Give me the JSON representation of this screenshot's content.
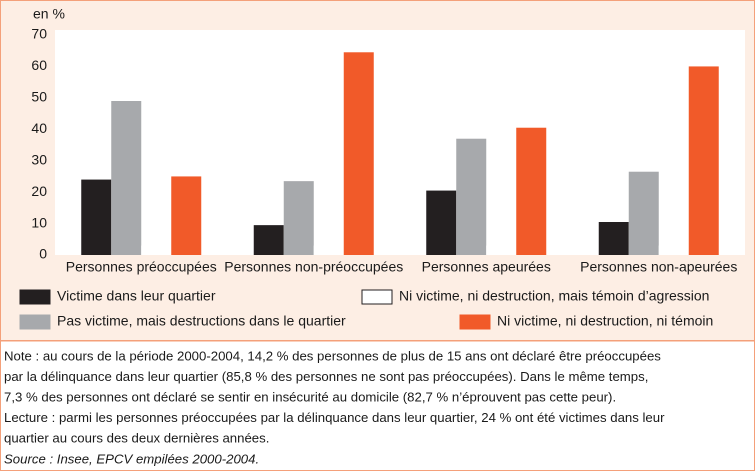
{
  "chart_data": {
    "type": "bar",
    "ylabel": "en %",
    "categories": [
      "Personnes préoccupées",
      "Personnes non-préoccupées",
      "Personnes apeurées",
      "Personnes non-apeurées"
    ],
    "series": [
      {
        "name": "Victime dans leur quartier",
        "color": "#231f20",
        "values": [
          24,
          9.5,
          20.5,
          10.5
        ]
      },
      {
        "name": "Pas victime, mais destructions dans le quartier",
        "color": "#a7a9ac",
        "values": [
          49,
          23.5,
          37,
          26.5
        ]
      },
      {
        "name": "Ni victime, ni destruction, mais témoin d’agression",
        "color": "#ffffff",
        "values": [
          3,
          3,
          3,
          3
        ]
      },
      {
        "name": "Ni victime, ni destruction, ni témoin",
        "color": "#f15a29",
        "values": [
          25,
          64.5,
          40.5,
          60
        ]
      }
    ],
    "ylim": [
      0,
      70
    ],
    "yticks": [
      0,
      10,
      20,
      30,
      40,
      50,
      60,
      70
    ],
    "grid": false,
    "notes": [
      "Note : au cours de la période 2000-2004, 14,2 % des personnes de plus de 15 ans ont déclaré être préoccupées",
      "par la délinquance dans leur quartier (85,8 % des personnes ne sont pas préoccupées). Dans le même temps,",
      "7,3 % des personnes ont déclaré se sentir en insécurité au domicile (82,7 % n’éprouvent pas cette peur).",
      "Lecture : parmi les personnes préoccupées par la délinquance dans leur quartier, 24 % ont été victimes dans leur",
      "quartier au cours des deux dernières années."
    ],
    "source": "Source : Insee, EPCV empilées 2000-2004."
  }
}
